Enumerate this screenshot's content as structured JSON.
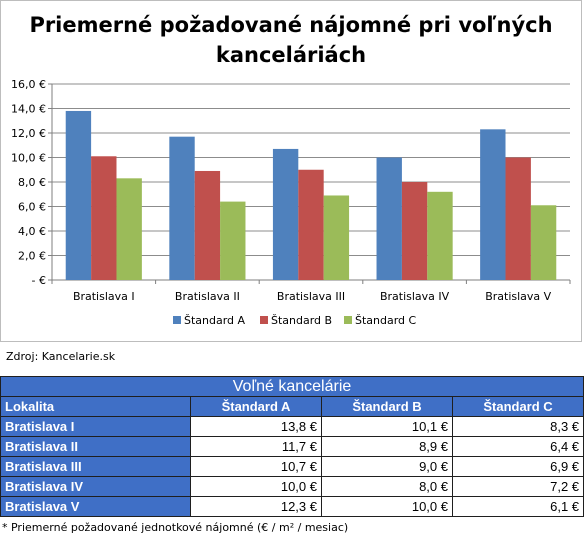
{
  "chart_data": {
    "type": "bar",
    "title": "Priemerné požadované nájomné pri voľných kanceláriách",
    "categories": [
      "Bratislava I",
      "Bratislava II",
      "Bratislava III",
      "Bratislava IV",
      "Bratislava V"
    ],
    "series": [
      {
        "name": "Štandard A",
        "color": "#4f81bd",
        "values": [
          13.8,
          11.7,
          10.7,
          10.0,
          12.3
        ]
      },
      {
        "name": "Štandard B",
        "color": "#c0504d",
        "values": [
          10.1,
          8.9,
          9.0,
          8.0,
          10.0
        ]
      },
      {
        "name": "Štandard C",
        "color": "#9bbb59",
        "values": [
          8.3,
          6.4,
          6.9,
          7.2,
          6.1
        ]
      }
    ],
    "ylim": [
      0,
      16
    ],
    "yticks": [
      "-  €",
      "2,0 €",
      "4,0 €",
      "6,0 €",
      "8,0 €",
      "10,0 €",
      "12,0 €",
      "14,0 €",
      "16,0 €"
    ],
    "grid": true,
    "legend": "bottom"
  },
  "source": "Zdroj: Kancelarie.sk",
  "table": {
    "caption": "Voľné kancelárie",
    "headers": [
      "Lokalita",
      "Štandard A",
      "Štandard B",
      "Štandard C"
    ],
    "rows": [
      {
        "label": "Bratislava I",
        "a": "13,8 €",
        "b": "10,1 €",
        "c": "8,3 €"
      },
      {
        "label": "Bratislava II",
        "a": "11,7 €",
        "b": "8,9 €",
        "c": "6,4 €"
      },
      {
        "label": "Bratislava III",
        "a": "10,7 €",
        "b": "9,0 €",
        "c": "6,9 €"
      },
      {
        "label": "Bratislava IV",
        "a": "10,0 €",
        "b": "8,0 €",
        "c": "7,2 €"
      },
      {
        "label": "Bratislava V",
        "a": "12,3 €",
        "b": "10,0 €",
        "c": "6,1 €"
      }
    ]
  },
  "footnote": "* Priemerné požadované jednotkové nájomné (€ / m² / mesiac)"
}
